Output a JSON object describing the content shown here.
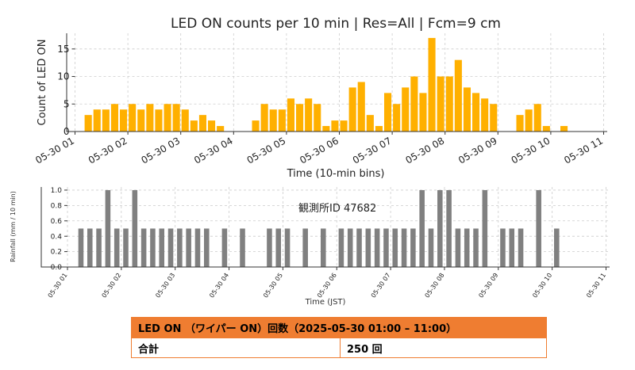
{
  "chart_data": [
    {
      "type": "bar",
      "title": "LED ON counts per 10 min | Res=All | Fcm=9 cm",
      "xlabel": "Time (10-min bins)",
      "ylabel": "Count of LED ON",
      "ylim": [
        0,
        17.85
      ],
      "yticks": [
        0,
        5,
        10,
        15
      ],
      "xticks": [
        "05-30 01",
        "05-30 02",
        "05-30 03",
        "05-30 04",
        "05-30 05",
        "05-30 06",
        "05-30 07",
        "05-30 08",
        "05-30 09",
        "05-30 10",
        "05-30 11"
      ],
      "x_start": "05-30 01:00",
      "bin_minutes": 10,
      "values": [
        0,
        3,
        4,
        4,
        5,
        4,
        5,
        4,
        5,
        4,
        5,
        5,
        4,
        2,
        3,
        2,
        1,
        0,
        0,
        0,
        2,
        5,
        4,
        4,
        6,
        5,
        6,
        5,
        1,
        2,
        2,
        8,
        9,
        3,
        1,
        7,
        5,
        8,
        10,
        7,
        17,
        10,
        10,
        13,
        8,
        7,
        6,
        5,
        0,
        0,
        3,
        4,
        5,
        1,
        0,
        1,
        0,
        0,
        0,
        0
      ],
      "color": "#ffb000",
      "grid": true
    },
    {
      "type": "bar",
      "title": "",
      "xlabel": "Time (JST)",
      "ylabel": "Rainfall (mm / 10 min)",
      "ylim": [
        0,
        1.02
      ],
      "yticks": [
        "0.0",
        "0.2",
        "0.4",
        "0.6",
        "0.8",
        "1.0"
      ],
      "xticks": [
        "05-30 01",
        "05-30 02",
        "05-30 03",
        "05-30 04",
        "05-30 05",
        "05-30 06",
        "05-30 07",
        "05-30 08",
        "05-30 09",
        "05-30 10",
        "05-30 11"
      ],
      "x_start": "05-30 01:00",
      "bin_minutes": 10,
      "values": [
        0,
        0.5,
        0.5,
        0.5,
        1.0,
        0.5,
        0.5,
        1.0,
        0.5,
        0.5,
        0.5,
        0.5,
        0.5,
        0.5,
        0.5,
        0.5,
        0,
        0.5,
        0,
        0.5,
        0,
        0,
        0.5,
        0.5,
        0.5,
        0,
        0.5,
        0,
        0.5,
        0,
        0.5,
        0.5,
        0.5,
        0.5,
        0.5,
        0.5,
        0.5,
        0.5,
        0.5,
        1.0,
        0.5,
        1.0,
        1.0,
        0.5,
        0.5,
        0.5,
        1.0,
        0,
        0.5,
        0.5,
        0.5,
        0,
        1.0,
        0,
        0.5,
        0,
        0,
        0,
        0,
        0
      ],
      "color": "#808080",
      "grid": true,
      "annotation": "観測所ID  47682"
    }
  ],
  "summary_table": {
    "header": "LED ON （ワイパー ON）回数（2025-05-30 01:00 – 11:00）",
    "label": "合計",
    "value": "250 回"
  }
}
